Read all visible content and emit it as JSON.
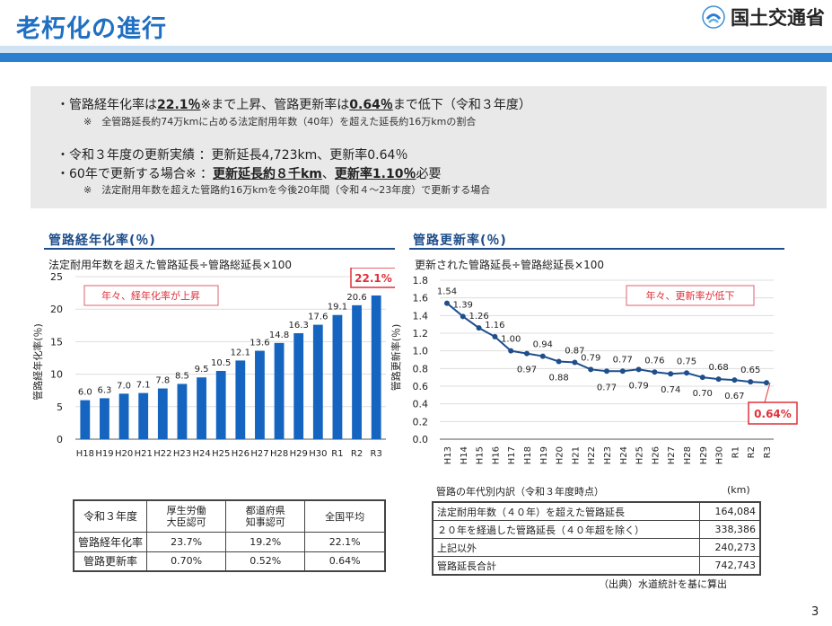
{
  "header": {
    "title": "老朽化の進行",
    "ministry": "国土交通省"
  },
  "summary": {
    "line1_pre": "・管路経年化率は",
    "line1_val1": "22.1％",
    "line1_mid": "※まで上昇、管路更新率は",
    "line1_val2": "0.64％",
    "line1_post": "まで低下（令和３年度）",
    "note1": "※　全管路延長約74万kmに占める法定耐用年数（40年）を超えた延長約16万kmの割合",
    "line2": "・令和３年度の更新実績 ：更新延長4,723km、更新率0.64％",
    "line3_pre": "・60年で更新する場合※ ：",
    "line3_val1": "更新延長約８千km",
    "line3_mid": "、",
    "line3_val2": "更新率1.10％",
    "line3_post": "必要",
    "note2": "※　法定耐用年数を超えた管路約16万kmを今後20年間（令和４～23年度）で更新する場合"
  },
  "left_section": {
    "title": "管路経年化率(％)",
    "formula": "法定耐用年数を超えた管路延長÷管路総延長×100",
    "annotation": "年々、経年化率が上昇",
    "highlight": "22.1%"
  },
  "right_section": {
    "title": "管路更新率(％)",
    "formula": "更新された管路延長÷管路総延長×100",
    "annotation": "年々、更新率が低下",
    "highlight": "0.64%"
  },
  "chart_data": [
    {
      "type": "bar",
      "title": "管路経年化率(％)",
      "ylabel": "管路経年化率(％)",
      "xlabel": "",
      "ylim": [
        0,
        25
      ],
      "yticks": [
        0,
        5,
        10,
        15,
        20,
        25
      ],
      "categories": [
        "H18",
        "H19",
        "H20",
        "H21",
        "H22",
        "H23",
        "H24",
        "H25",
        "H26",
        "H27",
        "H28",
        "H29",
        "H30",
        "R1",
        "R2",
        "R3"
      ],
      "values": [
        6.0,
        6.3,
        7.0,
        7.1,
        7.8,
        8.5,
        9.5,
        10.5,
        12.1,
        13.6,
        14.8,
        16.3,
        17.6,
        19.1,
        20.6,
        22.1
      ],
      "value_labels": [
        "6.0",
        "6.3",
        "7.0",
        "7.1",
        "7.8",
        "8.5",
        "9.5",
        "10.5",
        "12.1",
        "13.6",
        "14.8",
        "16.3",
        "17.6",
        "19.1",
        "20.6",
        ""
      ],
      "color": "#1565c0",
      "grid": true
    },
    {
      "type": "line",
      "title": "管路更新率(％)",
      "ylabel": "管路更新率(％)",
      "xlabel": "",
      "ylim": [
        0,
        1.8
      ],
      "yticks": [
        "0.0",
        "0.2",
        "0.4",
        "0.6",
        "0.8",
        "1.0",
        "1.2",
        "1.4",
        "1.6",
        "1.8"
      ],
      "categories": [
        "H13",
        "H14",
        "H15",
        "H16",
        "H17",
        "H18",
        "H19",
        "H20",
        "H21",
        "H22",
        "H23",
        "H24",
        "H25",
        "H26",
        "H27",
        "H28",
        "H29",
        "H30",
        "R1",
        "R2",
        "R3"
      ],
      "values": [
        1.54,
        1.39,
        1.26,
        1.16,
        1.0,
        0.97,
        0.94,
        0.88,
        0.87,
        0.79,
        0.77,
        0.77,
        0.79,
        0.76,
        0.74,
        0.75,
        0.7,
        0.68,
        0.67,
        0.65,
        0.64
      ],
      "value_labels": [
        "1.54",
        "1.39",
        "1.26",
        "1.16",
        "1.00",
        "0.97",
        "0.94",
        "0.88",
        "0.87",
        "0.79",
        "0.77",
        "0.77",
        "0.79",
        "0.76",
        "0.74",
        "0.75",
        "0.70",
        "0.68",
        "0.67",
        "0.65",
        ""
      ],
      "label_pos": [
        "a",
        "a",
        "a",
        "a",
        "a",
        "b",
        "a",
        "b",
        "a",
        "a",
        "b",
        "a",
        "b",
        "a",
        "b",
        "a",
        "b",
        "a",
        "b",
        "a",
        "a"
      ],
      "color": "#1f4e8c",
      "grid": true
    }
  ],
  "table_left": {
    "headers": [
      "令和３年度",
      "厚生労働\n大臣認可",
      "都道府県\n知事認可",
      "全国平均"
    ],
    "rows": [
      [
        "管路経年化率",
        "23.7%",
        "19.2%",
        "22.1%"
      ],
      [
        "管路更新率",
        "0.70%",
        "0.52%",
        "0.64%"
      ]
    ]
  },
  "table_right": {
    "caption": "管路の年代別内訳（令和３年度時点）",
    "unit": "(km)",
    "rows": [
      [
        "法定耐用年数（４０年）を超えた管路延長",
        "164,084"
      ],
      [
        "２０年を経過した管路延長（４０年超を除く）",
        "338,386"
      ],
      [
        "上記以外",
        "240,273"
      ],
      [
        "管路延長合計",
        "742,743"
      ]
    ],
    "source": "（出典）水道統計を基に算出"
  },
  "page_number": "3",
  "colors": {
    "accent": "#2a7fd0",
    "title": "#1f6fc2",
    "bar": "#1565c0",
    "line": "#1f4e8c",
    "highlight": "#e0303a"
  }
}
